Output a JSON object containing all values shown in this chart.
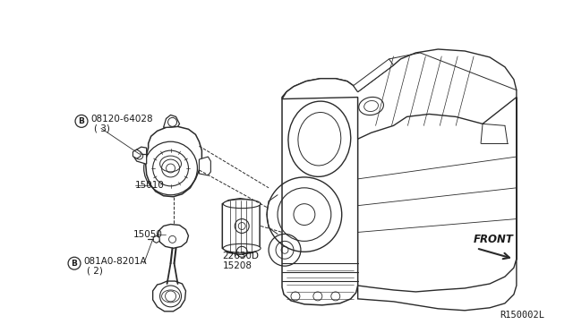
{
  "bg_color": "#ffffff",
  "line_color": "#2a2a2a",
  "text_color": "#1a1a1a",
  "ref_code": "R150002L",
  "labels": {
    "bolt1_line1": "Ⓑ 08120-64028",
    "bolt1_line2": "( 3)",
    "part15010": "15010",
    "part15050": "15050",
    "bolt2_line1": "Ⓑ 081A0-8201A",
    "bolt2_line2": "( 2)",
    "part22630": "22630D",
    "part15208": "15208",
    "front": "FRONT"
  },
  "fig_width": 6.4,
  "fig_height": 3.72,
  "dpi": 100
}
